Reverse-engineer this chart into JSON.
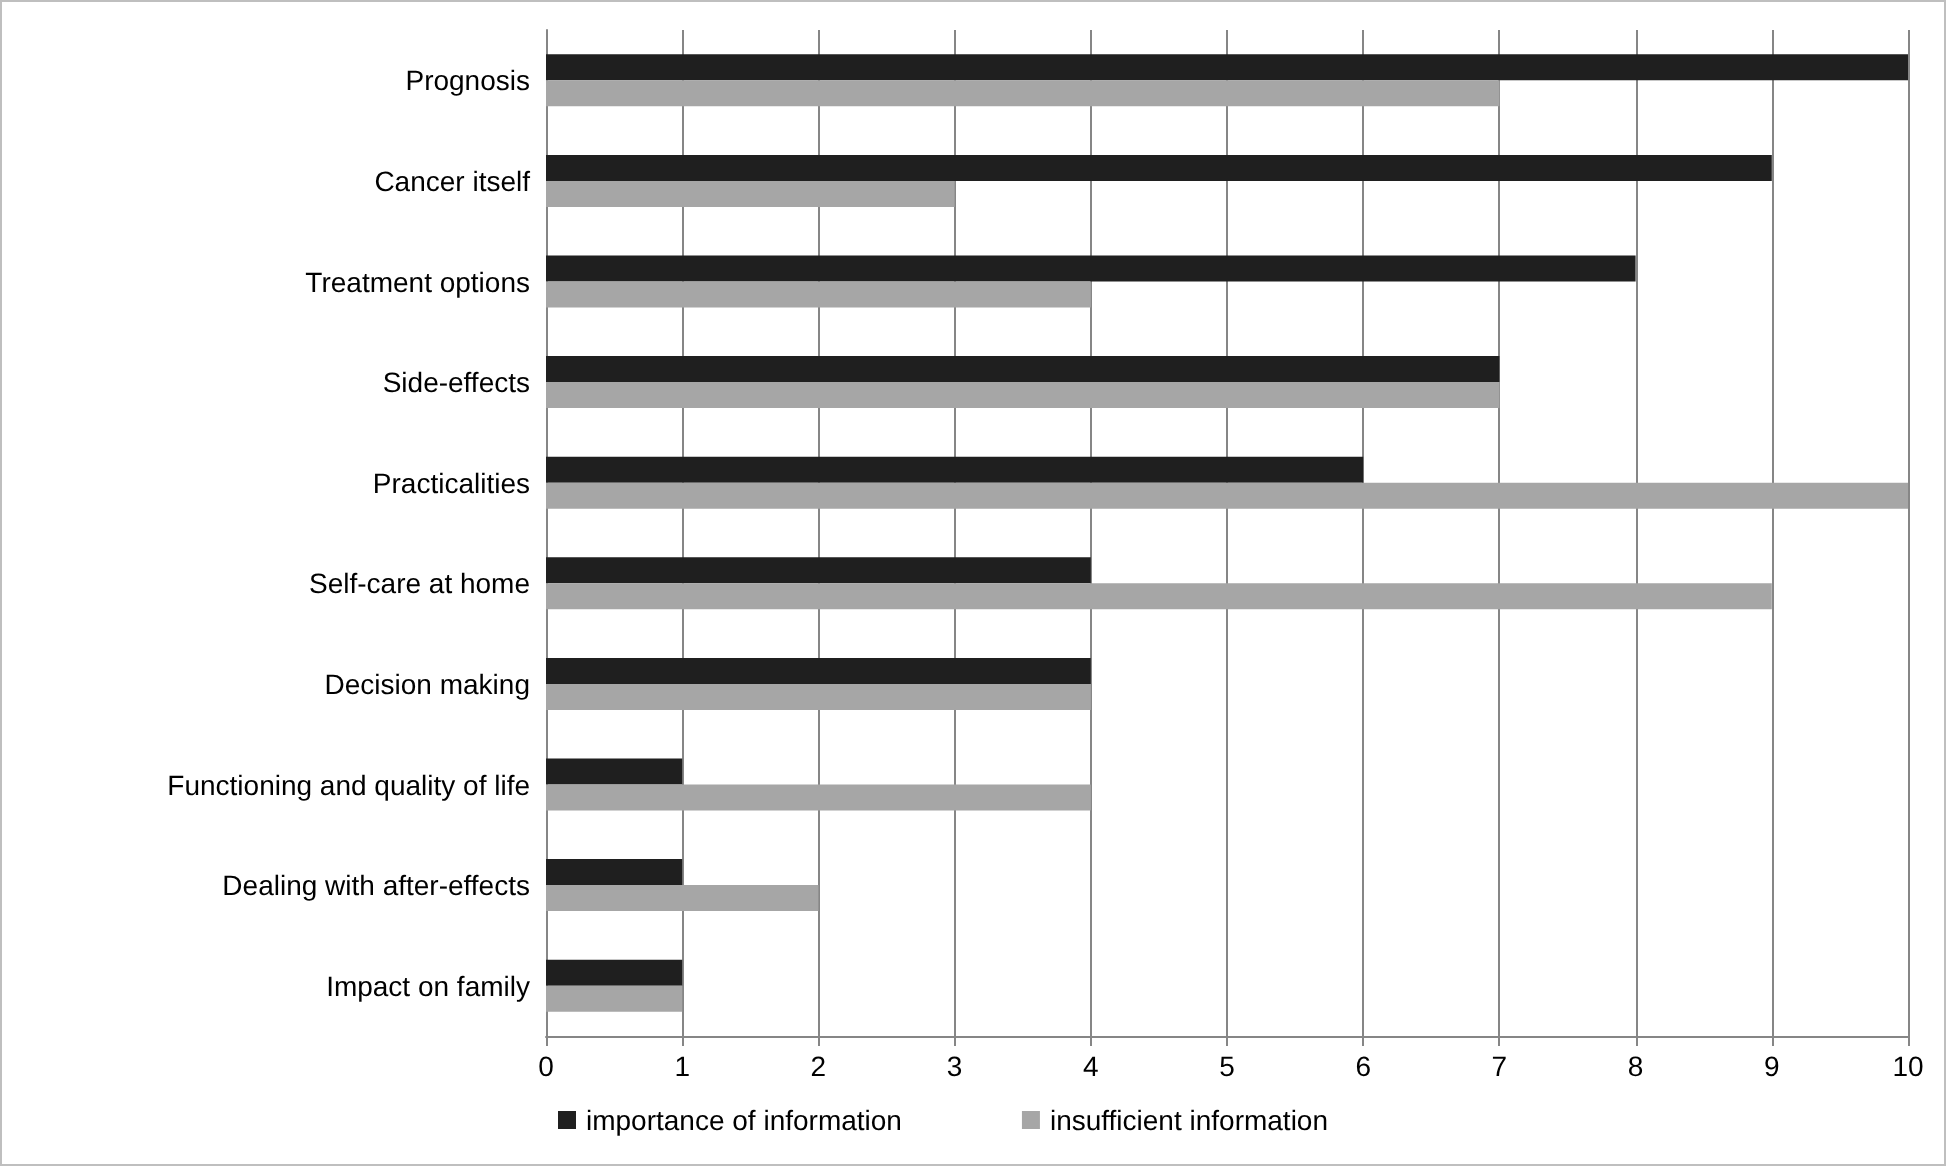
{
  "chart_data": {
    "type": "bar",
    "orientation": "horizontal",
    "categories": [
      "Prognosis",
      "Cancer itself",
      "Treatment options",
      "Side-effects",
      "Practicalities",
      "Self-care at home",
      "Decision making",
      "Functioning and quality of life",
      "Dealing with after-effects",
      "Impact on family"
    ],
    "series": [
      {
        "name": "importance of information",
        "color": "#1f1f1f",
        "values": [
          10,
          9,
          8,
          7,
          6,
          4,
          4,
          1,
          1,
          1
        ]
      },
      {
        "name": "insufficient information",
        "color": "#a6a6a6",
        "values": [
          7,
          3,
          4,
          7,
          10,
          9,
          4,
          4,
          2,
          1
        ]
      }
    ],
    "xlim": [
      0,
      10
    ],
    "xticks": [
      0,
      1,
      2,
      3,
      4,
      5,
      6,
      7,
      8,
      9,
      10
    ],
    "grid": "x",
    "legend": "bottom"
  }
}
